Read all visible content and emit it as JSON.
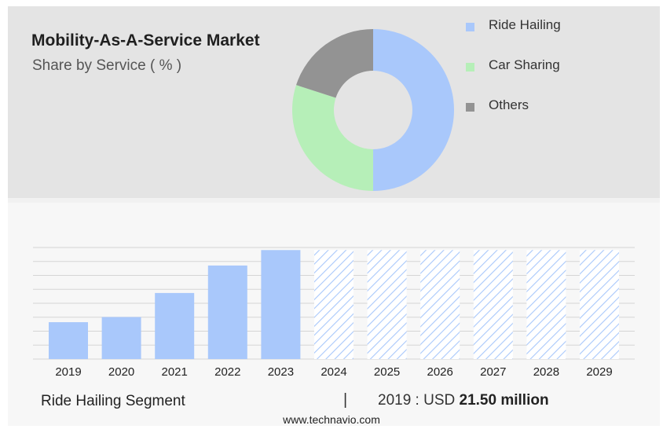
{
  "header": {
    "title": "Mobility-As-A-Service Market",
    "subtitle": "Share by Service ( % )"
  },
  "colors": {
    "ride_hailing": "#a9c8fb",
    "car_sharing": "#b6efb8",
    "others": "#939393",
    "forecast_hatch": "#a9c8fb",
    "gridline": "#d5d5d5"
  },
  "legend": [
    {
      "label": "Ride Hailing",
      "color": "#a9c8fb"
    },
    {
      "label": "Car Sharing",
      "color": "#b6efb8"
    },
    {
      "label": "Others",
      "color": "#939393"
    }
  ],
  "chart_data": [
    {
      "type": "pie",
      "title": "Share by Service ( % )",
      "series": [
        {
          "name": "Ride Hailing",
          "value": 50
        },
        {
          "name": "Car Sharing",
          "value": 30
        },
        {
          "name": "Others",
          "value": 20
        }
      ]
    },
    {
      "type": "bar",
      "categories": [
        "2019",
        "2020",
        "2021",
        "2022",
        "2023",
        "2024",
        "2025",
        "2026",
        "2027",
        "2028",
        "2029"
      ],
      "values": [
        21.5,
        24.5,
        38.5,
        54.5,
        63.5,
        63.5,
        63.5,
        63.5,
        63.5,
        63.5,
        63.5
      ],
      "forecast_from": "2024",
      "ylim": [
        0,
        65
      ],
      "gridlines": 8
    }
  ],
  "footer": {
    "segment_label": "Ride Hailing Segment",
    "separator": "|",
    "year_label": "2019 : USD",
    "value_label": "21.50 million"
  },
  "source": "www.technavio.com"
}
